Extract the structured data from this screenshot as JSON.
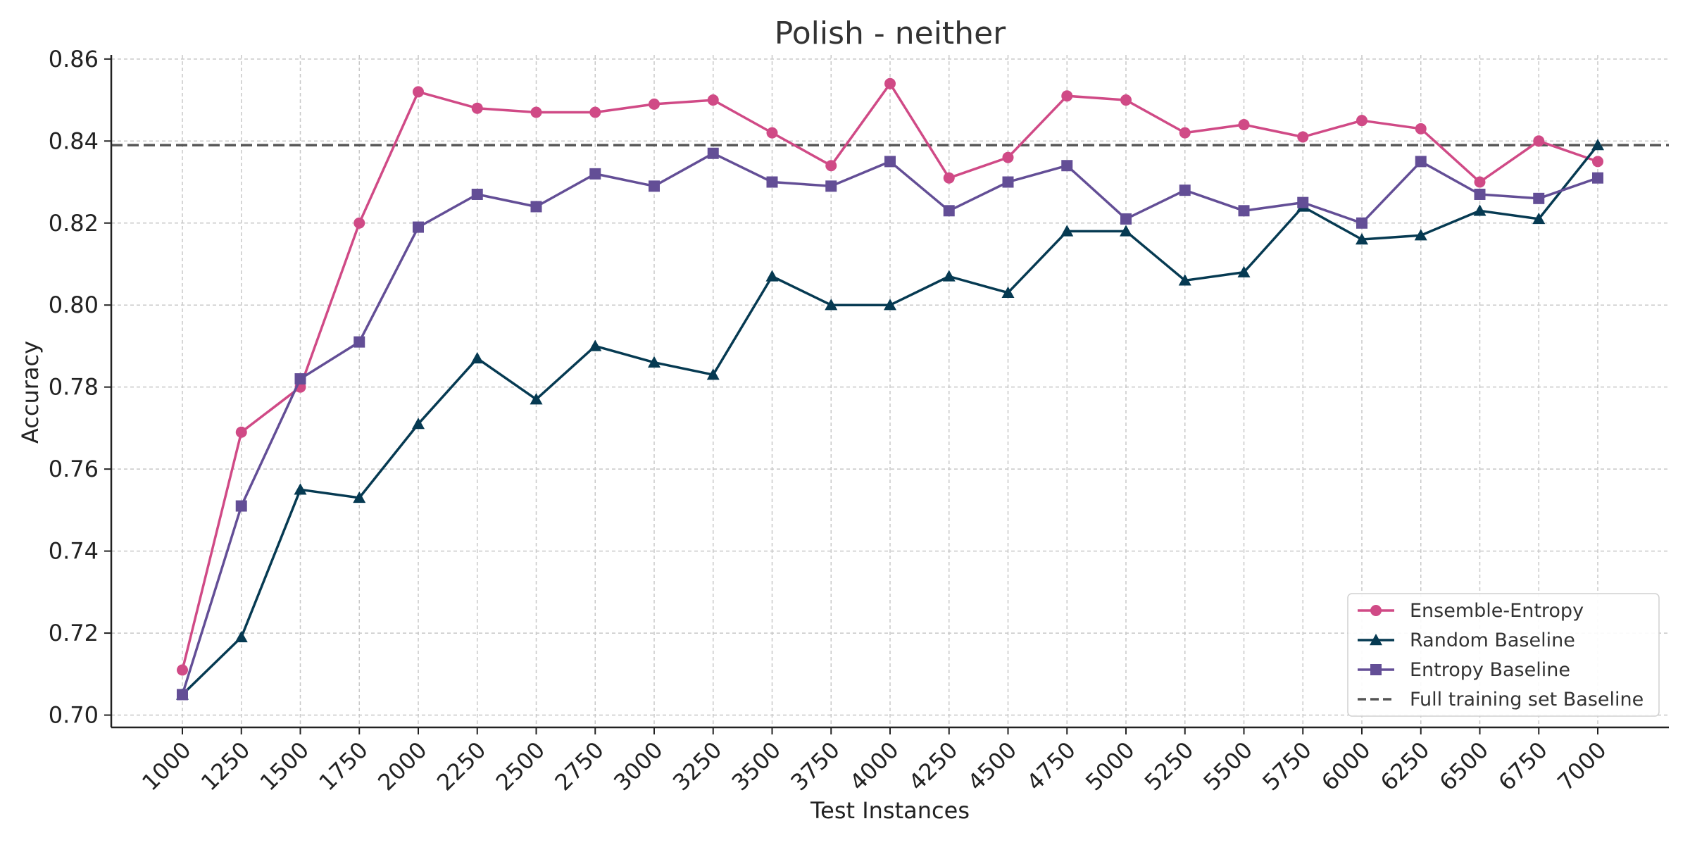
{
  "chart_data": {
    "type": "line",
    "title": "Polish - neither",
    "xlabel": "Test Instances",
    "ylabel": "Accuracy",
    "x": [
      1000,
      1250,
      1500,
      1750,
      2000,
      2250,
      2500,
      2750,
      3000,
      3250,
      3500,
      3750,
      4000,
      4250,
      4500,
      4750,
      5000,
      5250,
      5500,
      5750,
      6000,
      6250,
      6500,
      6750,
      7000
    ],
    "ylim": [
      0.697,
      0.861
    ],
    "yticks": [
      "0.70",
      "0.72",
      "0.74",
      "0.76",
      "0.78",
      "0.80",
      "0.82",
      "0.84",
      "0.86"
    ],
    "grid": true,
    "legend_position": "lower-right",
    "series": [
      {
        "name": "Ensemble-Entropy",
        "color": "#d04a86",
        "marker": "circle",
        "values": [
          0.711,
          0.769,
          0.78,
          0.82,
          0.852,
          0.848,
          0.847,
          0.847,
          0.849,
          0.85,
          0.842,
          0.834,
          0.854,
          0.831,
          0.836,
          0.851,
          0.85,
          0.842,
          0.844,
          0.841,
          0.845,
          0.843,
          0.83,
          0.84,
          0.835
        ]
      },
      {
        "name": "Random Baseline",
        "color": "#063a52",
        "marker": "triangle",
        "values": [
          0.705,
          0.719,
          0.755,
          0.753,
          0.771,
          0.787,
          0.777,
          0.79,
          0.786,
          0.783,
          0.807,
          0.8,
          0.8,
          0.807,
          0.803,
          0.818,
          0.818,
          0.806,
          0.808,
          0.824,
          0.816,
          0.817,
          0.823,
          0.821,
          0.839
        ]
      },
      {
        "name": "Entropy Baseline",
        "color": "#634e96",
        "marker": "square",
        "values": [
          0.705,
          0.751,
          0.782,
          0.791,
          0.819,
          0.827,
          0.824,
          0.832,
          0.829,
          0.837,
          0.83,
          0.829,
          0.835,
          0.823,
          0.83,
          0.834,
          0.821,
          0.828,
          0.823,
          0.825,
          0.82,
          0.835,
          0.827,
          0.826,
          0.831
        ]
      }
    ],
    "reference_line": {
      "name": "Full training set Baseline",
      "value": 0.839,
      "color": "#555555",
      "style": "dashed"
    }
  }
}
